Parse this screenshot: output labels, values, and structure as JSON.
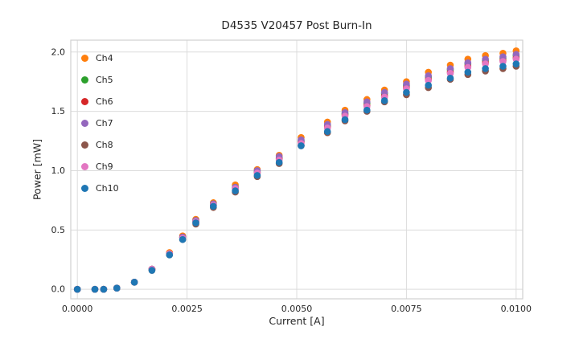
{
  "title": "D4535 V20457 Post Burn-In",
  "chart_data": {
    "type": "scatter",
    "title": "D4535 V20457 Post Burn-In",
    "xlabel": "Current [A]",
    "ylabel": "Power [mW]",
    "xlim": [
      -0.00015,
      0.01015
    ],
    "ylim": [
      -0.08,
      2.1
    ],
    "grid": true,
    "legend_position": "upper-left",
    "xticks": {
      "values": [
        0.0,
        0.0025,
        0.005,
        0.0075,
        0.01
      ],
      "labels": [
        "0.0000",
        "0.0025",
        "0.0050",
        "0.0075",
        "0.0100"
      ]
    },
    "yticks": {
      "values": [
        0.0,
        0.5,
        1.0,
        1.5,
        2.0
      ],
      "labels": [
        "0.0",
        "0.5",
        "1.0",
        "1.5",
        "2.0"
      ]
    },
    "x": [
      0.0,
      0.0004,
      0.0006,
      0.0009,
      0.0013,
      0.0017,
      0.0021,
      0.0024,
      0.0027,
      0.0031,
      0.0036,
      0.0041,
      0.0046,
      0.0051,
      0.0057,
      0.0061,
      0.0066,
      0.007,
      0.0075,
      0.008,
      0.0085,
      0.0089,
      0.0093,
      0.0097,
      0.01
    ],
    "series": [
      {
        "name": "Ch4",
        "color": "#ff7f0e",
        "values": [
          0.0,
          0.0,
          0.0,
          0.01,
          0.06,
          0.17,
          0.31,
          0.45,
          0.59,
          0.73,
          0.88,
          1.01,
          1.13,
          1.28,
          1.41,
          1.51,
          1.6,
          1.68,
          1.75,
          1.83,
          1.89,
          1.94,
          1.97,
          1.99,
          2.01
        ]
      },
      {
        "name": "Ch5",
        "color": "#2ca02c",
        "values": [
          0.0,
          0.0,
          0.0,
          0.01,
          0.06,
          0.17,
          0.3,
          0.44,
          0.58,
          0.72,
          0.86,
          0.99,
          1.11,
          1.25,
          1.38,
          1.48,
          1.57,
          1.65,
          1.72,
          1.79,
          1.85,
          1.9,
          1.93,
          1.95,
          1.97
        ]
      },
      {
        "name": "Ch6",
        "color": "#d62728",
        "values": [
          0.0,
          0.0,
          0.0,
          0.01,
          0.06,
          0.17,
          0.3,
          0.44,
          0.57,
          0.71,
          0.85,
          0.98,
          1.1,
          1.24,
          1.37,
          1.47,
          1.55,
          1.63,
          1.7,
          1.77,
          1.83,
          1.88,
          1.91,
          1.93,
          1.95
        ]
      },
      {
        "name": "Ch7",
        "color": "#9467bd",
        "values": [
          0.0,
          0.0,
          0.0,
          0.01,
          0.06,
          0.17,
          0.3,
          0.44,
          0.58,
          0.72,
          0.86,
          1.0,
          1.12,
          1.26,
          1.39,
          1.49,
          1.58,
          1.66,
          1.73,
          1.8,
          1.86,
          1.91,
          1.94,
          1.96,
          1.98
        ]
      },
      {
        "name": "Ch8",
        "color": "#8c564b",
        "values": [
          0.0,
          0.0,
          0.0,
          0.01,
          0.06,
          0.16,
          0.29,
          0.42,
          0.55,
          0.69,
          0.82,
          0.95,
          1.06,
          1.21,
          1.32,
          1.42,
          1.5,
          1.58,
          1.64,
          1.7,
          1.77,
          1.81,
          1.84,
          1.86,
          1.88
        ]
      },
      {
        "name": "Ch9",
        "color": "#e377c2",
        "values": [
          0.0,
          0.0,
          0.0,
          0.01,
          0.06,
          0.17,
          0.3,
          0.43,
          0.57,
          0.71,
          0.85,
          0.98,
          1.09,
          1.23,
          1.36,
          1.46,
          1.54,
          1.62,
          1.69,
          1.76,
          1.82,
          1.87,
          1.9,
          1.92,
          1.94
        ]
      },
      {
        "name": "Ch10",
        "color": "#1f77b4",
        "values": [
          0.0,
          0.0,
          0.0,
          0.01,
          0.06,
          0.16,
          0.29,
          0.42,
          0.56,
          0.7,
          0.83,
          0.96,
          1.07,
          1.21,
          1.33,
          1.43,
          1.51,
          1.59,
          1.66,
          1.72,
          1.78,
          1.83,
          1.86,
          1.88,
          1.9
        ]
      }
    ]
  },
  "colors": {
    "grid": "#dcdcdc",
    "spine": "#d0d0d0",
    "text": "#262626"
  }
}
